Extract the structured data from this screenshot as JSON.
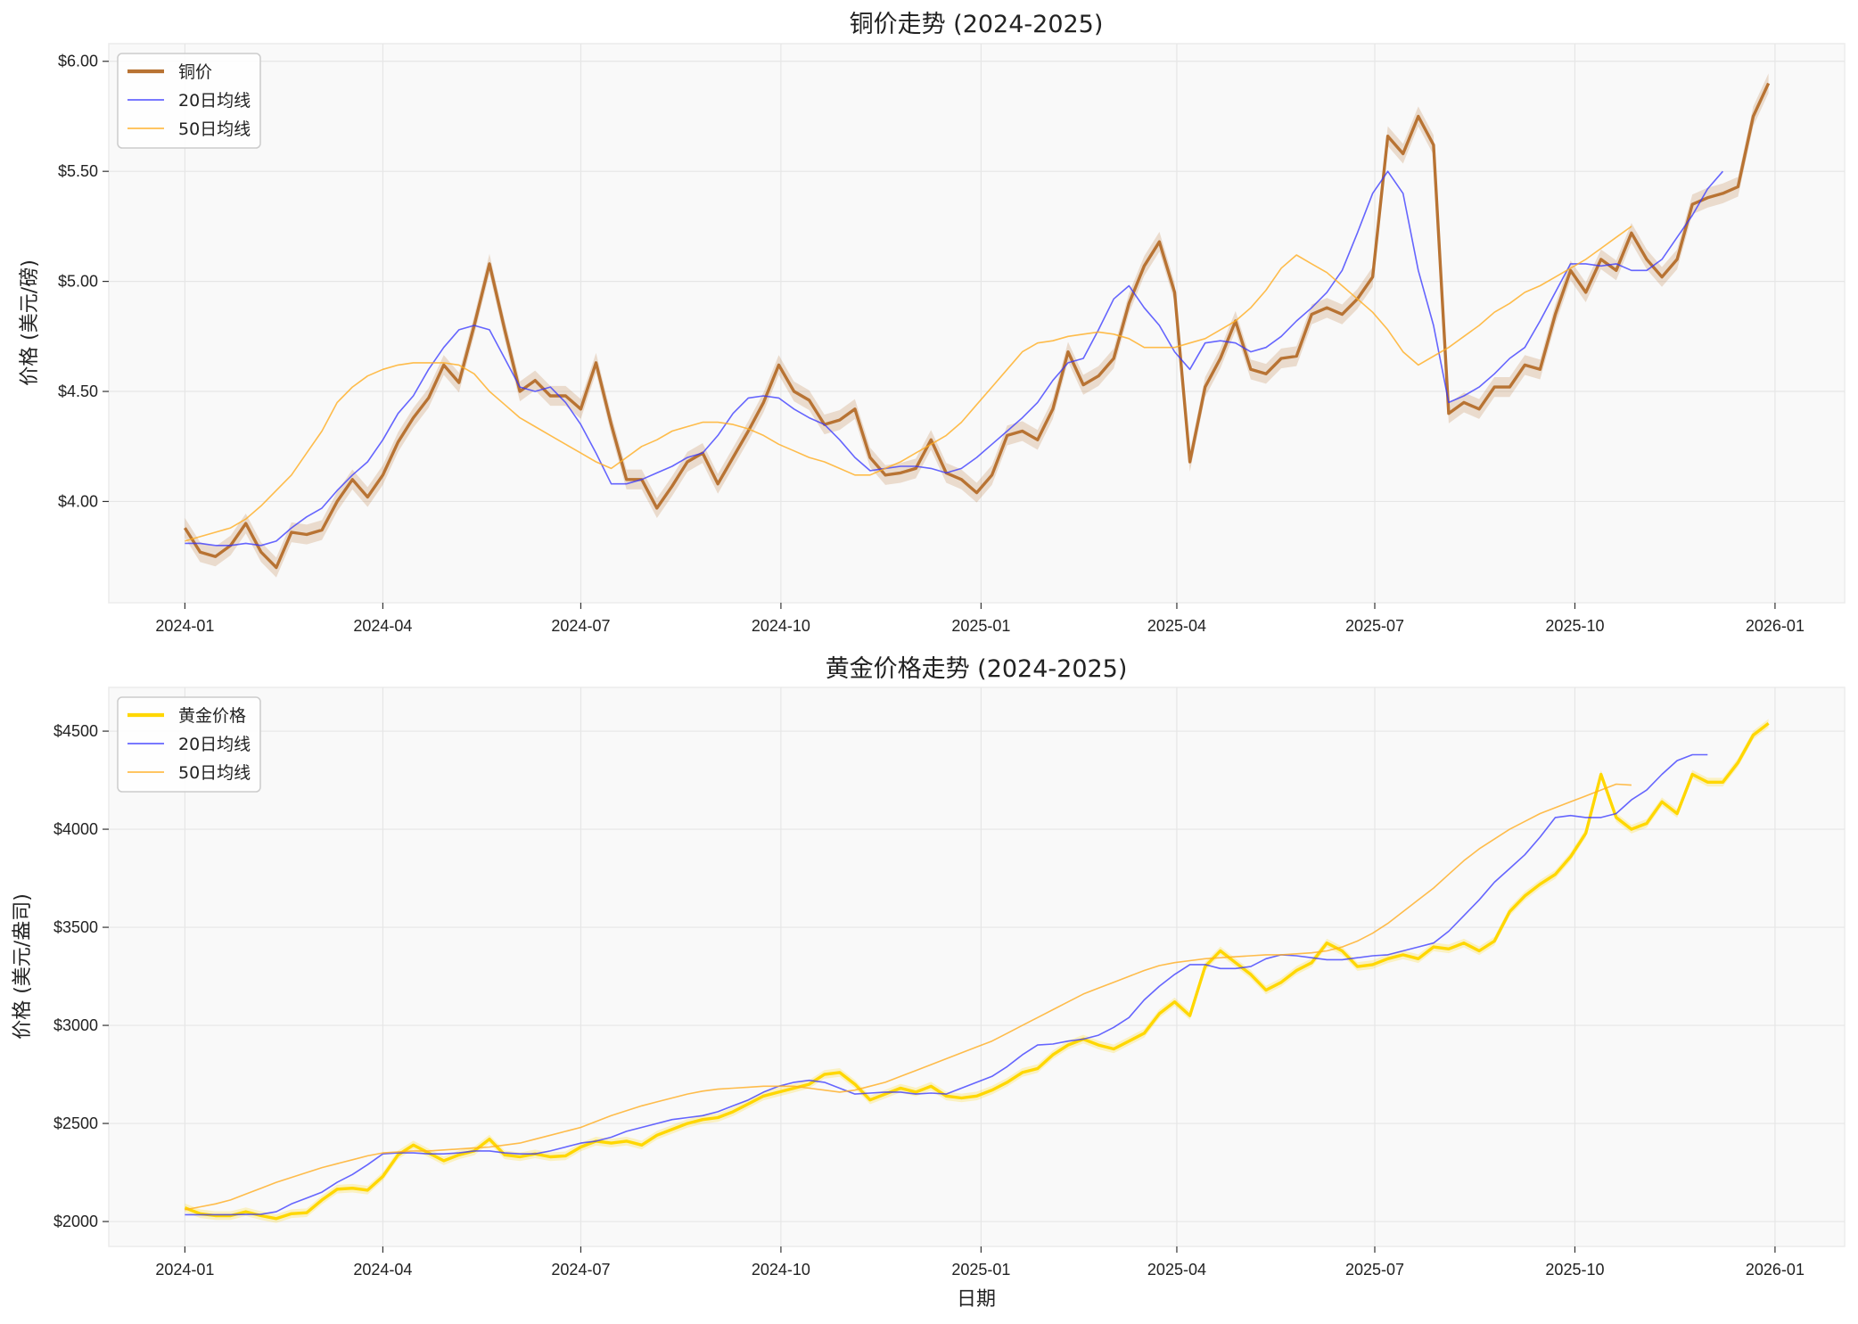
{
  "chart_data": [
    {
      "type": "line",
      "title": "铜价走势 (2024-2025)",
      "xlabel": "",
      "ylabel": "价格 (美元/磅)",
      "xlim": [
        "2023-11-27",
        "2026-02-02"
      ],
      "ylim": [
        3.54,
        6.08
      ],
      "xticks": [
        "2024-01-01",
        "2024-04-01",
        "2024-07-01",
        "2024-10-01",
        "2025-01-01",
        "2025-04-01",
        "2025-07-01",
        "2025-10-01",
        "2026-01-01"
      ],
      "xtick_labels": [
        "2024-01",
        "2024-04",
        "2024-07",
        "2024-10",
        "2025-01",
        "2025-04",
        "2025-07",
        "2025-10",
        "2026-01"
      ],
      "yticks": [
        4.0,
        4.5,
        5.0,
        5.5,
        6.0
      ],
      "ytick_labels": [
        "$4.00",
        "$4.50",
        "$5.00",
        "$5.50",
        "$6.00"
      ],
      "grid": true,
      "legend": "upper-left",
      "background": "#f9f9f9",
      "x": [
        "2024-01-01",
        "2024-01-08",
        "2024-01-15",
        "2024-01-22",
        "2024-01-29",
        "2024-02-05",
        "2024-02-12",
        "2024-02-19",
        "2024-02-26",
        "2024-03-04",
        "2024-03-11",
        "2024-03-18",
        "2024-03-25",
        "2024-04-01",
        "2024-04-08",
        "2024-04-15",
        "2024-04-22",
        "2024-04-29",
        "2024-05-06",
        "2024-05-13",
        "2024-05-20",
        "2024-05-27",
        "2024-06-03",
        "2024-06-10",
        "2024-06-17",
        "2024-06-24",
        "2024-07-01",
        "2024-07-08",
        "2024-07-15",
        "2024-07-22",
        "2024-07-29",
        "2024-08-05",
        "2024-08-12",
        "2024-08-19",
        "2024-08-26",
        "2024-09-02",
        "2024-09-09",
        "2024-09-16",
        "2024-09-23",
        "2024-09-30",
        "2024-10-07",
        "2024-10-14",
        "2024-10-21",
        "2024-10-28",
        "2024-11-04",
        "2024-11-11",
        "2024-11-18",
        "2024-11-25",
        "2024-12-02",
        "2024-12-09",
        "2024-12-16",
        "2024-12-23",
        "2024-12-30",
        "2025-01-06",
        "2025-01-13",
        "2025-01-20",
        "2025-01-27",
        "2025-02-03",
        "2025-02-10",
        "2025-02-17",
        "2025-02-24",
        "2025-03-03",
        "2025-03-10",
        "2025-03-17",
        "2025-03-24",
        "2025-03-31",
        "2025-04-07",
        "2025-04-14",
        "2025-04-21",
        "2025-04-28",
        "2025-05-05",
        "2025-05-12",
        "2025-05-19",
        "2025-05-26",
        "2025-06-02",
        "2025-06-09",
        "2025-06-16",
        "2025-06-23",
        "2025-06-30",
        "2025-07-07",
        "2025-07-14",
        "2025-07-21",
        "2025-07-28",
        "2025-08-04",
        "2025-08-11",
        "2025-08-18",
        "2025-08-25",
        "2025-09-01",
        "2025-09-08",
        "2025-09-15",
        "2025-09-22",
        "2025-09-29",
        "2025-10-06",
        "2025-10-13",
        "2025-10-20",
        "2025-10-27",
        "2025-11-03",
        "2025-11-10",
        "2025-11-17",
        "2025-11-24",
        "2025-12-01",
        "2025-12-08",
        "2025-12-15",
        "2025-12-22",
        "2025-12-29"
      ],
      "series": [
        {
          "name": "铜价",
          "color": "#b87333",
          "band": true,
          "values": [
            3.88,
            3.77,
            3.75,
            3.8,
            3.9,
            3.77,
            3.7,
            3.86,
            3.85,
            3.87,
            4.0,
            4.1,
            4.02,
            4.12,
            4.27,
            4.38,
            4.47,
            4.62,
            4.54,
            4.8,
            5.08,
            4.78,
            4.5,
            4.55,
            4.48,
            4.48,
            4.42,
            4.63,
            4.35,
            4.1,
            4.1,
            3.97,
            4.07,
            4.18,
            4.22,
            4.08,
            4.2,
            4.32,
            4.45,
            4.62,
            4.5,
            4.46,
            4.35,
            4.37,
            4.42,
            4.2,
            4.12,
            4.13,
            4.15,
            4.28,
            4.13,
            4.1,
            4.04,
            4.12,
            4.3,
            4.32,
            4.28,
            4.42,
            4.68,
            4.53,
            4.57,
            4.65,
            4.9,
            5.07,
            5.18,
            4.95,
            4.18,
            4.52,
            4.65,
            4.82,
            4.6,
            4.58,
            4.65,
            4.66,
            4.85,
            4.88,
            4.85,
            4.92,
            5.02,
            5.66,
            5.58,
            5.75,
            5.62,
            4.4,
            4.45,
            4.42,
            4.52,
            4.52,
            4.62,
            4.6,
            4.85,
            5.05,
            4.95,
            5.1,
            5.05,
            5.22,
            5.1,
            5.02,
            5.1,
            5.35,
            5.38,
            5.4,
            5.43,
            5.75,
            5.9
          ]
        },
        {
          "name": "20日均线",
          "color": "#3333ff",
          "values": [
            3.81,
            3.81,
            3.8,
            3.8,
            3.81,
            3.8,
            3.82,
            3.88,
            3.93,
            3.97,
            4.05,
            4.12,
            4.18,
            4.28,
            4.4,
            4.48,
            4.6,
            4.7,
            4.78,
            4.8,
            4.78,
            4.65,
            4.52,
            4.5,
            4.52,
            4.45,
            4.35,
            4.22,
            4.08,
            4.08,
            4.1,
            4.13,
            4.16,
            4.2,
            4.22,
            4.3,
            4.4,
            4.47,
            4.48,
            4.47,
            4.42,
            4.38,
            4.35,
            4.28,
            4.2,
            4.14,
            4.15,
            4.16,
            4.16,
            4.15,
            4.13,
            4.15,
            4.2,
            4.26,
            4.32,
            4.38,
            4.45,
            4.55,
            4.63,
            4.65,
            4.78,
            4.92,
            4.98,
            4.88,
            4.8,
            4.68,
            4.6,
            4.72,
            4.73,
            4.72,
            4.68,
            4.7,
            4.75,
            4.82,
            4.88,
            4.95,
            5.05,
            5.22,
            5.4,
            5.5,
            5.4,
            5.05,
            4.8,
            4.45,
            4.48,
            4.52,
            4.58,
            4.65,
            4.7,
            4.82,
            4.95,
            5.08,
            5.08,
            5.07,
            5.08,
            5.05,
            5.05,
            5.1,
            5.2,
            5.3,
            5.42,
            5.5,
            null,
            null,
            null
          ]
        },
        {
          "name": "50日均线",
          "color": "#ffad1f",
          "values": [
            3.82,
            3.84,
            3.86,
            3.88,
            3.92,
            3.98,
            4.05,
            4.12,
            4.22,
            4.32,
            4.45,
            4.52,
            4.57,
            4.6,
            4.62,
            4.63,
            4.63,
            4.63,
            4.62,
            4.58,
            4.5,
            4.44,
            4.38,
            4.34,
            4.3,
            4.26,
            4.22,
            4.18,
            4.15,
            4.2,
            4.25,
            4.28,
            4.32,
            4.34,
            4.36,
            4.36,
            4.35,
            4.33,
            4.3,
            4.26,
            4.23,
            4.2,
            4.18,
            4.15,
            4.12,
            4.12,
            4.15,
            4.18,
            4.22,
            4.26,
            4.3,
            4.36,
            4.44,
            4.52,
            4.6,
            4.68,
            4.72,
            4.73,
            4.75,
            4.76,
            4.77,
            4.76,
            4.74,
            4.7,
            4.7,
            4.7,
            4.72,
            4.74,
            4.78,
            4.82,
            4.88,
            4.96,
            5.06,
            5.12,
            5.08,
            5.04,
            4.98,
            4.92,
            4.86,
            4.78,
            4.68,
            4.62,
            4.66,
            4.7,
            4.75,
            4.8,
            4.86,
            4.9,
            4.95,
            4.98,
            5.02,
            5.06,
            5.1,
            5.15,
            5.2,
            5.25,
            null,
            null,
            null,
            null,
            null,
            null,
            null,
            null,
            null
          ]
        }
      ]
    },
    {
      "type": "line",
      "title": "黄金价格走势 (2024-2025)",
      "xlabel": "日期",
      "ylabel": "价格 (美元/盎司)",
      "xlim": [
        "2023-11-27",
        "2026-02-02"
      ],
      "ylim": [
        1873,
        4723
      ],
      "xticks": [
        "2024-01-01",
        "2024-04-01",
        "2024-07-01",
        "2024-10-01",
        "2025-01-01",
        "2025-04-01",
        "2025-07-01",
        "2025-10-01",
        "2026-01-01"
      ],
      "xtick_labels": [
        "2024-01",
        "2024-04",
        "2024-07",
        "2024-10",
        "2025-01",
        "2025-04",
        "2025-07",
        "2025-10",
        "2026-01"
      ],
      "yticks": [
        2000,
        2500,
        3000,
        3500,
        4000,
        4500
      ],
      "ytick_labels": [
        "$2000",
        "$2500",
        "$3000",
        "$3500",
        "$4000",
        "$4500"
      ],
      "grid": true,
      "legend": "upper-left",
      "background": "#f9f9f9",
      "x": [
        "2024-01-01",
        "2024-01-08",
        "2024-01-15",
        "2024-01-22",
        "2024-01-29",
        "2024-02-05",
        "2024-02-12",
        "2024-02-19",
        "2024-02-26",
        "2024-03-04",
        "2024-03-11",
        "2024-03-18",
        "2024-03-25",
        "2024-04-01",
        "2024-04-08",
        "2024-04-15",
        "2024-04-22",
        "2024-04-29",
        "2024-05-06",
        "2024-05-13",
        "2024-05-20",
        "2024-05-27",
        "2024-06-03",
        "2024-06-10",
        "2024-06-17",
        "2024-06-24",
        "2024-07-01",
        "2024-07-08",
        "2024-07-15",
        "2024-07-22",
        "2024-07-29",
        "2024-08-05",
        "2024-08-12",
        "2024-08-19",
        "2024-08-26",
        "2024-09-02",
        "2024-09-09",
        "2024-09-16",
        "2024-09-23",
        "2024-09-30",
        "2024-10-07",
        "2024-10-14",
        "2024-10-21",
        "2024-10-28",
        "2024-11-04",
        "2024-11-11",
        "2024-11-18",
        "2024-11-25",
        "2024-12-02",
        "2024-12-09",
        "2024-12-16",
        "2024-12-23",
        "2024-12-30",
        "2025-01-06",
        "2025-01-13",
        "2025-01-20",
        "2025-01-27",
        "2025-02-03",
        "2025-02-10",
        "2025-02-17",
        "2025-02-24",
        "2025-03-03",
        "2025-03-10",
        "2025-03-17",
        "2025-03-24",
        "2025-03-31",
        "2025-04-07",
        "2025-04-14",
        "2025-04-21",
        "2025-04-28",
        "2025-05-05",
        "2025-05-12",
        "2025-05-19",
        "2025-05-26",
        "2025-06-02",
        "2025-06-09",
        "2025-06-16",
        "2025-06-23",
        "2025-06-30",
        "2025-07-07",
        "2025-07-14",
        "2025-07-21",
        "2025-07-28",
        "2025-08-04",
        "2025-08-11",
        "2025-08-18",
        "2025-08-25",
        "2025-09-01",
        "2025-09-08",
        "2025-09-15",
        "2025-09-22",
        "2025-09-29",
        "2025-10-06",
        "2025-10-13",
        "2025-10-20",
        "2025-10-27",
        "2025-11-03",
        "2025-11-10",
        "2025-11-17",
        "2025-11-24",
        "2025-12-01",
        "2025-12-08",
        "2025-12-15",
        "2025-12-22",
        "2025-12-29"
      ],
      "series": [
        {
          "name": "黄金价格",
          "color": "#ffd700",
          "band": true,
          "values": [
            2070,
            2040,
            2030,
            2030,
            2050,
            2030,
            2015,
            2040,
            2045,
            2110,
            2165,
            2170,
            2160,
            2230,
            2340,
            2390,
            2350,
            2310,
            2340,
            2360,
            2420,
            2340,
            2330,
            2345,
            2330,
            2335,
            2380,
            2410,
            2400,
            2410,
            2390,
            2440,
            2470,
            2500,
            2520,
            2530,
            2560,
            2600,
            2640,
            2660,
            2680,
            2700,
            2750,
            2760,
            2700,
            2620,
            2650,
            2680,
            2660,
            2690,
            2640,
            2630,
            2640,
            2670,
            2710,
            2760,
            2780,
            2850,
            2900,
            2930,
            2900,
            2880,
            2920,
            2960,
            3060,
            3120,
            3050,
            3300,
            3380,
            3320,
            3260,
            3180,
            3220,
            3280,
            3320,
            3420,
            3380,
            3300,
            3310,
            3340,
            3360,
            3340,
            3400,
            3390,
            3420,
            3380,
            3430,
            3580,
            3660,
            3720,
            3770,
            3860,
            3980,
            4280,
            4060,
            4000,
            4030,
            4140,
            4080,
            4280,
            4240,
            4240,
            4340,
            4480,
            4540
          ]
        },
        {
          "name": "20日均线",
          "color": "#3333ff",
          "values": [
            2035,
            2035,
            2035,
            2035,
            2036,
            2037,
            2050,
            2090,
            2120,
            2150,
            2200,
            2240,
            2290,
            2345,
            2350,
            2350,
            2345,
            2345,
            2350,
            2360,
            2360,
            2350,
            2345,
            2345,
            2360,
            2380,
            2400,
            2410,
            2430,
            2460,
            2480,
            2500,
            2520,
            2530,
            2540,
            2560,
            2590,
            2620,
            2660,
            2690,
            2710,
            2720,
            2710,
            2680,
            2650,
            2655,
            2660,
            2660,
            2650,
            2655,
            2650,
            2680,
            2710,
            2740,
            2790,
            2850,
            2900,
            2905,
            2920,
            2930,
            2950,
            2990,
            3040,
            3130,
            3200,
            3260,
            3310,
            3310,
            3290,
            3290,
            3300,
            3340,
            3360,
            3355,
            3345,
            3335,
            3335,
            3345,
            3355,
            3360,
            3380,
            3400,
            3420,
            3480,
            3560,
            3640,
            3730,
            3800,
            3870,
            3960,
            4060,
            4070,
            4060,
            4060,
            4080,
            4150,
            4200,
            4280,
            4350,
            4380,
            4380,
            null,
            null,
            null,
            null
          ]
        },
        {
          "name": "50日均线",
          "color": "#ffad1f",
          "values": [
            2060,
            2075,
            2090,
            2110,
            2140,
            2170,
            2200,
            2225,
            2250,
            2275,
            2295,
            2315,
            2335,
            2350,
            2355,
            2360,
            2360,
            2365,
            2370,
            2375,
            2380,
            2390,
            2400,
            2420,
            2440,
            2460,
            2480,
            2510,
            2540,
            2565,
            2590,
            2610,
            2630,
            2650,
            2665,
            2675,
            2680,
            2685,
            2690,
            2690,
            2690,
            2680,
            2670,
            2660,
            2670,
            2690,
            2710,
            2740,
            2770,
            2800,
            2830,
            2860,
            2890,
            2920,
            2960,
            3000,
            3040,
            3080,
            3120,
            3160,
            3190,
            3220,
            3250,
            3280,
            3305,
            3320,
            3330,
            3340,
            3345,
            3350,
            3355,
            3360,
            3360,
            3365,
            3370,
            3380,
            3400,
            3430,
            3470,
            3520,
            3580,
            3640,
            3700,
            3770,
            3840,
            3900,
            3950,
            4000,
            4040,
            4080,
            4110,
            4140,
            4170,
            4200,
            4230,
            4225,
            null,
            null,
            null,
            null,
            null,
            null,
            null,
            null,
            null
          ]
        }
      ]
    }
  ]
}
